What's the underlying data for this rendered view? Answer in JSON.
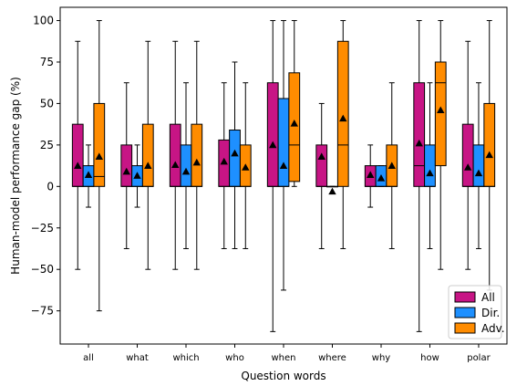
{
  "chart_data": {
    "type": "box",
    "xlabel": "Question words",
    "ylabel": "Human-model performance gap (%)",
    "categories": [
      "all",
      "what",
      "which",
      "who",
      "when",
      "where",
      "why",
      "how",
      "polar"
    ],
    "y_ticks": [
      -75,
      -50,
      -25,
      0,
      25,
      50,
      75,
      100
    ],
    "ylim": [
      -95,
      108
    ],
    "legend_position": "lower-right",
    "series": [
      {
        "name": "All",
        "color": "#C71585",
        "boxes": [
          {
            "whislo": -50,
            "q1": 0,
            "med": 0,
            "q3": 37.5,
            "whishi": 87.5,
            "mean": 12.5
          },
          {
            "whislo": -37.5,
            "q1": 0,
            "med": 0,
            "q3": 25,
            "whishi": 62.5,
            "mean": 9
          },
          {
            "whislo": -50,
            "q1": 0,
            "med": 0,
            "q3": 37.5,
            "whishi": 87.5,
            "mean": 13
          },
          {
            "whislo": -37.5,
            "q1": 0,
            "med": 0,
            "q3": 28,
            "whishi": 62.5,
            "mean": 15
          },
          {
            "whislo": -87.5,
            "q1": 0,
            "med": 0,
            "q3": 62.5,
            "whishi": 100,
            "mean": 25
          },
          {
            "whislo": -37.5,
            "q1": 0,
            "med": 0,
            "q3": 25,
            "whishi": 50,
            "mean": 18
          },
          {
            "whislo": -12.5,
            "q1": 0,
            "med": 0,
            "q3": 12.5,
            "whishi": 25,
            "mean": 7
          },
          {
            "whislo": -87.5,
            "q1": 0,
            "med": 12.5,
            "q3": 62.5,
            "whishi": 100,
            "mean": 26
          },
          {
            "whislo": -50,
            "q1": 0,
            "med": 0,
            "q3": 37.5,
            "whishi": 87.5,
            "mean": 11.5
          }
        ]
      },
      {
        "name": "Dir.",
        "color": "#1E90FF",
        "boxes": [
          {
            "whislo": -12.5,
            "q1": 0,
            "med": 0,
            "q3": 12.5,
            "whishi": 25,
            "mean": 7
          },
          {
            "whislo": -12.5,
            "q1": 0,
            "med": 0,
            "q3": 12.5,
            "whishi": 25,
            "mean": 6.5
          },
          {
            "whislo": -37.5,
            "q1": 0,
            "med": 0,
            "q3": 25,
            "whishi": 62.5,
            "mean": 9
          },
          {
            "whislo": -37.5,
            "q1": 0,
            "med": 0,
            "q3": 34,
            "whishi": 75,
            "mean": 20
          },
          {
            "whislo": -62.5,
            "q1": 0,
            "med": 0,
            "q3": 53,
            "whishi": 100,
            "mean": 12.5
          },
          {
            "whislo": 0,
            "q1": 0,
            "med": 0,
            "q3": 0,
            "whishi": 0,
            "mean": -3
          },
          {
            "whislo": 0,
            "q1": 0,
            "med": 0,
            "q3": 12.5,
            "whishi": 12.5,
            "mean": 5
          },
          {
            "whislo": -37.5,
            "q1": 0,
            "med": 0,
            "q3": 25,
            "whishi": 62.5,
            "mean": 8
          },
          {
            "whislo": -37.5,
            "q1": 0,
            "med": 0,
            "q3": 25,
            "whishi": 62.5,
            "mean": 8
          }
        ]
      },
      {
        "name": "Adv.",
        "color": "#FF8C00",
        "boxes": [
          {
            "whislo": -75,
            "q1": 0,
            "med": 6,
            "q3": 50,
            "whishi": 100,
            "mean": 18
          },
          {
            "whislo": -50,
            "q1": 0,
            "med": 0,
            "q3": 37.5,
            "whishi": 87.5,
            "mean": 12.5
          },
          {
            "whislo": -50,
            "q1": 0,
            "med": 0,
            "q3": 37.5,
            "whishi": 87.5,
            "mean": 14.5
          },
          {
            "whislo": -37.5,
            "q1": 0,
            "med": 0,
            "q3": 25,
            "whishi": 62.5,
            "mean": 11.5
          },
          {
            "whislo": 0,
            "q1": 3,
            "med": 25,
            "q3": 68.5,
            "whishi": 100,
            "mean": 38
          },
          {
            "whislo": -37.5,
            "q1": 0,
            "med": 25,
            "q3": 87.5,
            "whishi": 100,
            "mean": 41
          },
          {
            "whislo": -37.5,
            "q1": 0,
            "med": 0,
            "q3": 25,
            "whishi": 62.5,
            "mean": 12.5
          },
          {
            "whislo": -50,
            "q1": 12.5,
            "med": 62.5,
            "q3": 75,
            "whishi": 100,
            "mean": 46
          },
          {
            "whislo": -62.5,
            "q1": 0,
            "med": 0,
            "q3": 50,
            "whishi": 100,
            "mean": 19
          }
        ]
      }
    ]
  }
}
